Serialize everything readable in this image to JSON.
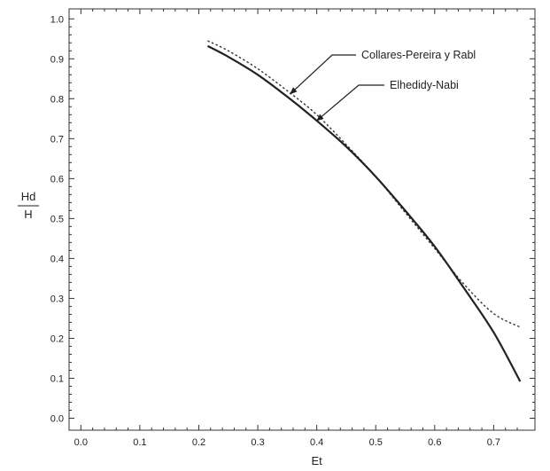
{
  "chart_data": {
    "type": "line",
    "title": "",
    "xlabel": "Et",
    "ylabel_top": "Hd",
    "ylabel_bottom": "H",
    "xlim": [
      -0.02,
      0.77
    ],
    "ylim": [
      -0.03,
      1.025
    ],
    "grid": false,
    "x_ticks": [
      "0.0",
      "0.1",
      "0.2",
      "0.3",
      "0.4",
      "0.5",
      "0.6",
      "0.7"
    ],
    "x_tick_values": [
      0.0,
      0.1,
      0.2,
      0.3,
      0.4,
      0.5,
      0.6,
      0.7
    ],
    "y_ticks": [
      "0.0",
      "0.1",
      "0.2",
      "0.3",
      "0.4",
      "0.5",
      "0.6",
      "0.7",
      "0.8",
      "0.9",
      "1.0"
    ],
    "y_tick_values": [
      0.0,
      0.1,
      0.2,
      0.3,
      0.4,
      0.5,
      0.6,
      0.7,
      0.8,
      0.9,
      1.0
    ],
    "series": [
      {
        "name": "Collares-Pereira y Rabl",
        "style": "dotted",
        "color": "#333333",
        "x": [
          0.215,
          0.25,
          0.3,
          0.35,
          0.4,
          0.45,
          0.5,
          0.55,
          0.6,
          0.65,
          0.7,
          0.745
        ],
        "y": [
          0.945,
          0.92,
          0.875,
          0.82,
          0.76,
          0.685,
          0.605,
          0.515,
          0.425,
          0.335,
          0.262,
          0.228
        ]
      },
      {
        "name": "Elhedidy-Nabi",
        "style": "solid",
        "color": "#222222",
        "x": [
          0.215,
          0.25,
          0.3,
          0.35,
          0.4,
          0.45,
          0.5,
          0.55,
          0.6,
          0.65,
          0.7,
          0.745
        ],
        "y": [
          0.932,
          0.905,
          0.86,
          0.805,
          0.745,
          0.68,
          0.605,
          0.52,
          0.43,
          0.325,
          0.215,
          0.092
        ]
      }
    ],
    "annotations": [
      {
        "text": "Collares-Pereira y Rabl",
        "series_index": 0,
        "arrow_to": [
          0.355,
          0.812
        ]
      },
      {
        "text": "Elhedidy-Nabi",
        "series_index": 1,
        "arrow_to": [
          0.4,
          0.745
        ]
      }
    ]
  }
}
